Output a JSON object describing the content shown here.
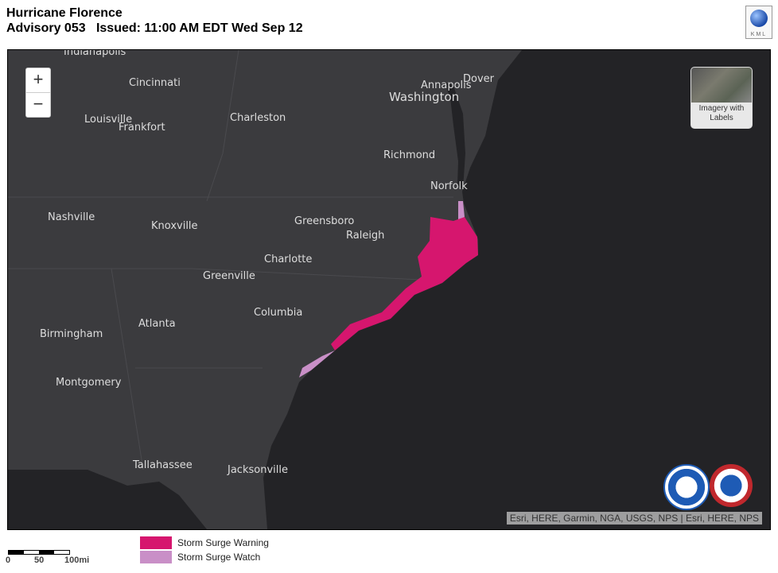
{
  "header": {
    "title": "Hurricane Florence",
    "subtitle": "Advisory 053   Issued: 11:00 AM EDT Wed Sep 12",
    "kml_label": "KML"
  },
  "map": {
    "zoom_in": "+",
    "zoom_out": "−",
    "basemap_label": "Imagery with Labels",
    "attribution": "Esri, HERE, Garmin, NGA, USGS, NPS | Esri, HERE, NPS",
    "colors": {
      "land": "#3b3b3e",
      "ocean": "#232326",
      "warning": "#d6166e",
      "watch": "#c98fc7"
    },
    "cities": [
      "Indianapolis",
      "Cincinnati",
      "Louisville",
      "Frankfort",
      "Charleston",
      "Annapolis",
      "Dover",
      "Washington",
      "Richmond",
      "Norfolk",
      "Nashville",
      "Knoxville",
      "Greensboro",
      "Raleigh",
      "Charlotte",
      "Greenville",
      "Columbia",
      "Atlanta",
      "Birmingham",
      "Montgomery",
      "Tallahassee",
      "Jacksonville"
    ],
    "logos": [
      "noaa-logo",
      "nws-logo"
    ]
  },
  "legend": {
    "items": [
      {
        "label": "Storm Surge Warning",
        "color": "#d6166e"
      },
      {
        "label": "Storm Surge Watch",
        "color": "#c98fc7"
      }
    ]
  },
  "scale": {
    "labels": [
      "0",
      "50",
      "100mi"
    ]
  }
}
